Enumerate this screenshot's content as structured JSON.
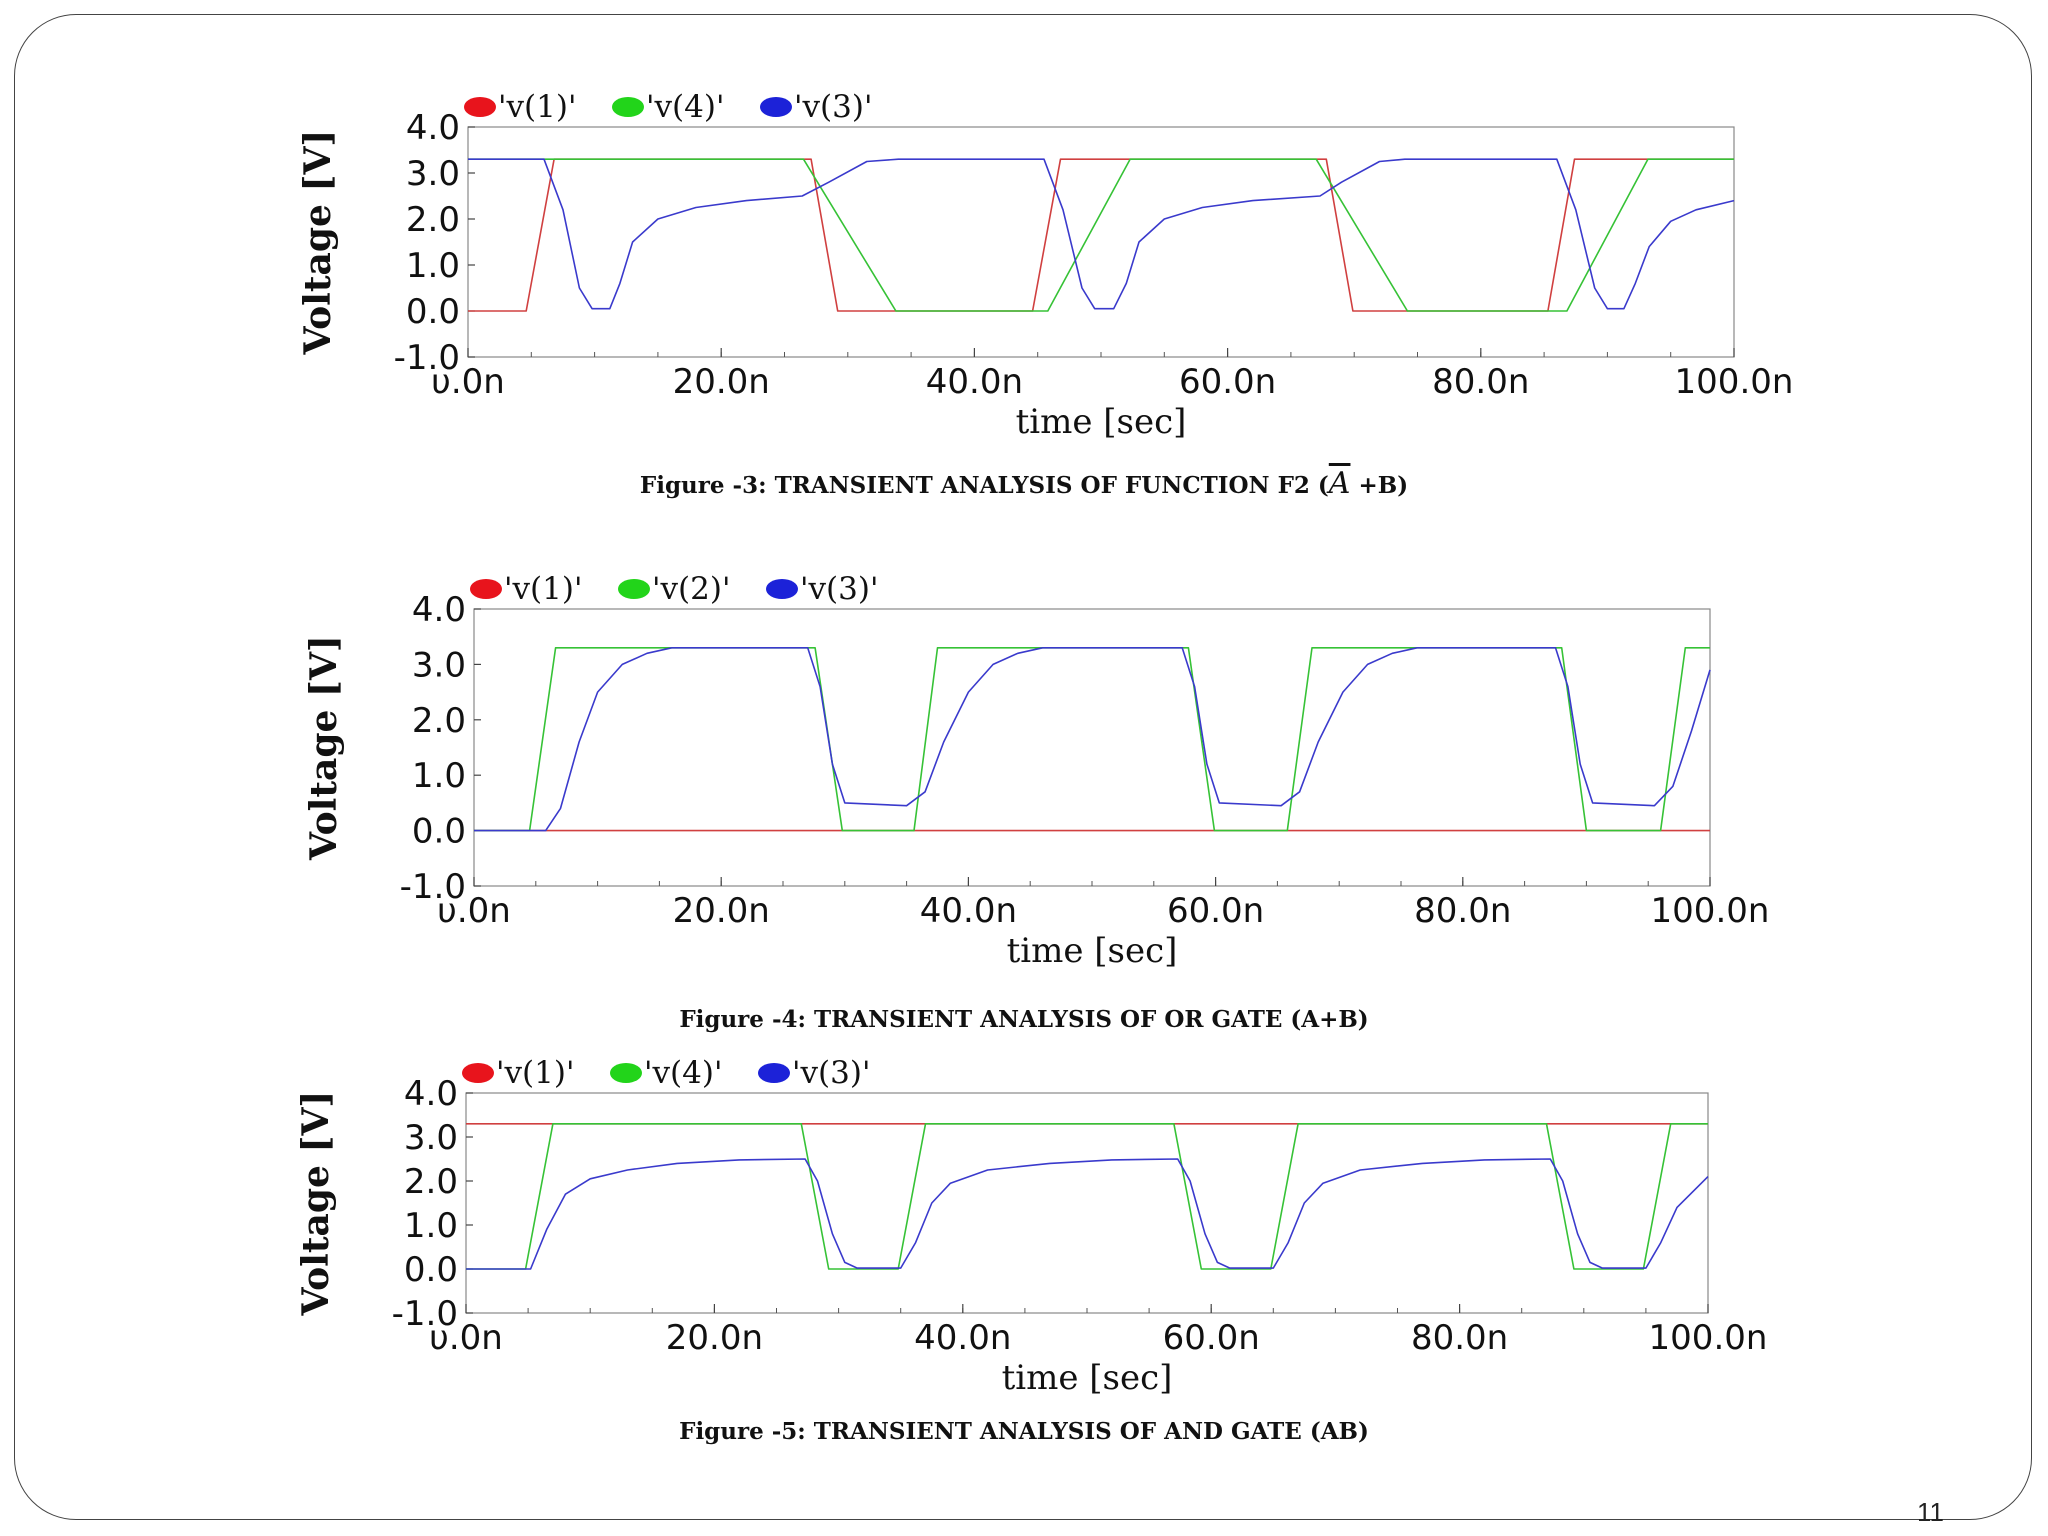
{
  "slide": {
    "page_number": "11"
  },
  "chart_data": [
    {
      "type": "line",
      "caption_pre": "Figure -3: TRANSIENT ANALYSIS OF FUNCTION F2 (",
      "caption_over": "A",
      "caption_post": " +B)",
      "xlabel": "time  [sec]",
      "ylabel": "Voltage [V]",
      "xlim": [
        0,
        100
      ],
      "ylim": [
        -1,
        4
      ],
      "xticks": [
        0,
        20,
        40,
        60,
        80,
        100
      ],
      "xtick_labels": [
        "υ.0n",
        "20.0n",
        "40.0n",
        "60.0n",
        "80.0n",
        "100.0n"
      ],
      "yticks": [
        4,
        3,
        2,
        1,
        0,
        -1
      ],
      "ytick_labels": [
        "4.0",
        "3.0",
        "2.0",
        "1.0",
        "0.0",
        "-1.0"
      ],
      "legend": [
        {
          "label": "'v(1)'",
          "color": "#e8141c"
        },
        {
          "label": "'v(4)'",
          "color": "#22d41a"
        },
        {
          "label": "'v(3)'",
          "color": "#1c22d8"
        }
      ],
      "series": [
        {
          "name": "'v(1)'",
          "color": "#d04040",
          "x": [
            0,
            4.6,
            6.8,
            27.1,
            29.2,
            44.6,
            46.8,
            67.8,
            69.9,
            85.3,
            87.4,
            100
          ],
          "y": [
            0,
            0,
            3.3,
            3.3,
            0,
            0,
            3.3,
            3.3,
            0,
            0,
            3.3,
            3.3
          ]
        },
        {
          "name": "'v(4)'",
          "color": "#36c236",
          "x": [
            0,
            6.2,
            12.4,
            26.5,
            33.8,
            45.8,
            52.3,
            67.0,
            74.2,
            86.8,
            93.2,
            100
          ],
          "y": [
            3.3,
            3.3,
            3.3,
            3.3,
            0,
            0,
            3.3,
            3.3,
            0,
            0,
            3.3,
            3.3
          ]
        },
        {
          "name": "'v(3)'",
          "color": "#3a3acc",
          "x": [
            0,
            6.0,
            7.5,
            8.8,
            9.8,
            11.2,
            12.0,
            13.0,
            15,
            18,
            22,
            26.4,
            28.5,
            31.5,
            34,
            45.5,
            47.0,
            48.5,
            49.5,
            51.0,
            52.0,
            53.0,
            55,
            58,
            62,
            67.3,
            69,
            72,
            74,
            86.0,
            87.5,
            89.0,
            90.0,
            91.3,
            92.2,
            93.3,
            95,
            97,
            100
          ],
          "y": [
            3.3,
            3.3,
            2.2,
            0.5,
            0.05,
            0.05,
            0.6,
            1.5,
            2.0,
            2.25,
            2.4,
            2.5,
            2.8,
            3.25,
            3.3,
            3.3,
            2.2,
            0.5,
            0.05,
            0.05,
            0.6,
            1.5,
            2.0,
            2.25,
            2.4,
            2.5,
            2.8,
            3.25,
            3.3,
            3.3,
            2.2,
            0.5,
            0.05,
            0.05,
            0.6,
            1.4,
            1.95,
            2.2,
            2.4
          ]
        }
      ]
    },
    {
      "type": "line",
      "caption_pre": "Figure -4: TRANSIENT ANALYSIS OF OR GATE (A+B)",
      "caption_over": "",
      "caption_post": "",
      "xlabel": "time  [sec]",
      "ylabel": "Voltage  [V]",
      "xlim": [
        0,
        100
      ],
      "ylim": [
        -1,
        4
      ],
      "xticks": [
        0,
        20,
        40,
        60,
        80,
        100
      ],
      "xtick_labels": [
        "υ.0n",
        "20.0n",
        "40.0n",
        "60.0n",
        "80.0n",
        "100.0n"
      ],
      "yticks": [
        4,
        3,
        2,
        1,
        0,
        -1
      ],
      "ytick_labels": [
        "4.0",
        "3.0",
        "2.0",
        "1.0",
        "0.0",
        "-1.0"
      ],
      "legend": [
        {
          "label": "'v(1)'",
          "color": "#e8141c"
        },
        {
          "label": "'v(2)'",
          "color": "#22d41a"
        },
        {
          "label": "'v(3)'",
          "color": "#1c22d8"
        }
      ],
      "series": [
        {
          "name": "'v(1)'",
          "color": "#d04040",
          "x": [
            0,
            100
          ],
          "y": [
            0,
            0
          ]
        },
        {
          "name": "'v(2)'",
          "color": "#36c236",
          "x": [
            0,
            4.5,
            6.6,
            27.6,
            29.8,
            35.6,
            37.5,
            57.8,
            59.9,
            65.8,
            67.8,
            88.0,
            90.0,
            96.0,
            98.0,
            100
          ],
          "y": [
            0,
            0,
            3.3,
            3.3,
            0,
            0,
            3.3,
            3.3,
            0,
            0,
            3.3,
            3.3,
            0,
            0,
            3.3,
            3.3
          ]
        },
        {
          "name": "'v(3)'",
          "color": "#3a3acc",
          "x": [
            0,
            5.8,
            7.0,
            8.5,
            10,
            12,
            14,
            16,
            27.0,
            28.0,
            29.0,
            30.0,
            35.0,
            36.5,
            38,
            40,
            42,
            44,
            46,
            57.3,
            58.3,
            59.3,
            60.3,
            65.3,
            66.8,
            68.3,
            70.3,
            72.3,
            74.3,
            76.3,
            87.5,
            88.5,
            89.5,
            90.5,
            95.5,
            97.0,
            98.5,
            100
          ],
          "y": [
            0,
            0,
            0.4,
            1.6,
            2.5,
            3.0,
            3.2,
            3.3,
            3.3,
            2.6,
            1.2,
            0.5,
            0.45,
            0.7,
            1.6,
            2.5,
            3.0,
            3.2,
            3.3,
            3.3,
            2.6,
            1.2,
            0.5,
            0.45,
            0.7,
            1.6,
            2.5,
            3.0,
            3.2,
            3.3,
            3.3,
            2.6,
            1.2,
            0.5,
            0.45,
            0.8,
            1.8,
            2.9
          ]
        }
      ]
    },
    {
      "type": "line",
      "caption_pre": "Figure -5: TRANSIENT ANALYSIS OF AND GATE (AB)",
      "caption_over": "",
      "caption_post": "",
      "xlabel": "time  [sec]",
      "ylabel": "Voltage [V]",
      "xlim": [
        0,
        100
      ],
      "ylim": [
        -1,
        4
      ],
      "xticks": [
        0,
        20,
        40,
        60,
        80,
        100
      ],
      "xtick_labels": [
        "υ.0n",
        "20.0n",
        "40.0n",
        "60.0n",
        "80.0n",
        "100.0n"
      ],
      "yticks": [
        4,
        3,
        2,
        1,
        0,
        -1
      ],
      "ytick_labels": [
        "4.0",
        "3.0",
        "2.0",
        "1.0",
        "0.0",
        "-1.0"
      ],
      "legend": [
        {
          "label": "'v(1)'",
          "color": "#e8141c"
        },
        {
          "label": "'v(4)'",
          "color": "#22d41a"
        },
        {
          "label": "'v(3)'",
          "color": "#1c22d8"
        }
      ],
      "series": [
        {
          "name": "'v(1)'",
          "color": "#d04040",
          "x": [
            0,
            100
          ],
          "y": [
            3.3,
            3.3
          ]
        },
        {
          "name": "'v(4)'",
          "color": "#36c236",
          "x": [
            0,
            4.8,
            7.0,
            27.0,
            29.2,
            34.8,
            37.0,
            57.0,
            59.2,
            64.8,
            67.0,
            87.0,
            89.2,
            94.8,
            97.0,
            100
          ],
          "y": [
            0,
            0,
            3.3,
            3.3,
            0,
            0,
            3.3,
            3.3,
            0,
            0,
            3.3,
            3.3,
            0,
            0,
            3.3,
            3.3
          ]
        },
        {
          "name": "'v(3)'",
          "color": "#3a3acc",
          "x": [
            0,
            5.2,
            6.5,
            8,
            10,
            13,
            17,
            22,
            27.3,
            28.3,
            29.5,
            30.5,
            31.5,
            35.0,
            36.2,
            37.5,
            39,
            42,
            47,
            52,
            57.3,
            58.3,
            59.5,
            60.5,
            61.5,
            65.0,
            66.2,
            67.5,
            69,
            72,
            77,
            82,
            87.3,
            88.3,
            89.5,
            90.5,
            91.5,
            95.0,
            96.2,
            97.5,
            100
          ],
          "y": [
            0,
            0,
            0.9,
            1.7,
            2.05,
            2.25,
            2.4,
            2.48,
            2.5,
            2.0,
            0.8,
            0.15,
            0.02,
            0.02,
            0.6,
            1.5,
            1.95,
            2.25,
            2.4,
            2.48,
            2.5,
            2.0,
            0.8,
            0.15,
            0.02,
            0.02,
            0.6,
            1.5,
            1.95,
            2.25,
            2.4,
            2.48,
            2.5,
            2.0,
            0.8,
            0.15,
            0.02,
            0.02,
            0.6,
            1.4,
            2.1
          ]
        }
      ]
    }
  ]
}
